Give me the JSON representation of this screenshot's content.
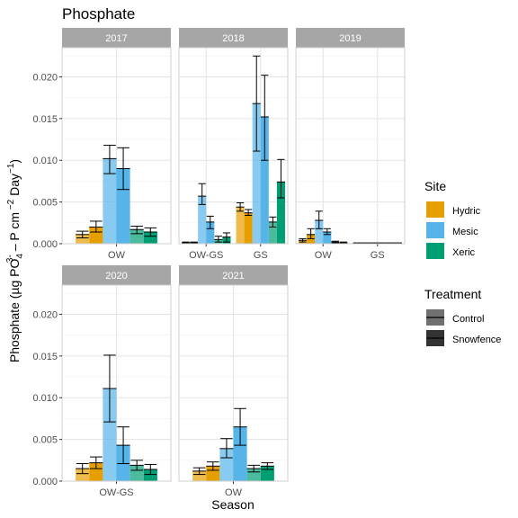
{
  "chart_data": {
    "type": "bar",
    "title": "Phosphate",
    "xlabel": "Season",
    "ylabel": {
      "main": "Phosphate (µg PO",
      "sub1": "4",
      "sup1": "3-",
      "mid": " – P cm",
      "sup2": " −2",
      "tail": " Day",
      "sup3": "−1",
      "close": ")"
    },
    "ylim": [
      0,
      0.0235
    ],
    "yticks": [
      0.0,
      0.005,
      0.01,
      0.015,
      0.02
    ],
    "ytick_labels": [
      "0.000",
      "0.005",
      "0.010",
      "0.015",
      "0.020"
    ],
    "grid": true,
    "legend_position": "right",
    "legend_site": {
      "title": "Site",
      "items": [
        {
          "label": "Hydric",
          "color": "#E69F00"
        },
        {
          "label": "Mesic",
          "color": "#56B4E9"
        },
        {
          "label": "Xeric",
          "color": "#009E73"
        }
      ]
    },
    "legend_treatment": {
      "title": "Treatment",
      "items": [
        {
          "label": "Control",
          "alpha": 0.7
        },
        {
          "label": "Snowfence",
          "alpha": 1.0
        }
      ]
    },
    "bar_order": [
      {
        "site": "Hydric",
        "treatment": "Control"
      },
      {
        "site": "Hydric",
        "treatment": "Snowfence"
      },
      {
        "site": "Mesic",
        "treatment": "Control"
      },
      {
        "site": "Mesic",
        "treatment": "Snowfence"
      },
      {
        "site": "Xeric",
        "treatment": "Control"
      },
      {
        "site": "Xeric",
        "treatment": "Snowfence"
      }
    ],
    "panels": [
      {
        "year": "2017",
        "categories": [
          "OW"
        ],
        "values": [
          [
            0.0011,
            0.002,
            0.0102,
            0.009,
            0.0017,
            0.0014
          ]
        ],
        "errors": [
          [
            [
              0.0007,
              0.0015
            ],
            [
              0.0014,
              0.0027
            ],
            [
              0.0084,
              0.0118
            ],
            [
              0.0065,
              0.0115
            ],
            [
              0.0012,
              0.0021
            ],
            [
              0.0009,
              0.0019
            ]
          ]
        ]
      },
      {
        "year": "2018",
        "categories": [
          "OW-GS",
          "GS"
        ],
        "values": [
          [
            0.0001,
            0.0001,
            0.0057,
            0.0026,
            0.0005,
            0.0008
          ],
          [
            0.0044,
            0.0037,
            0.0168,
            0.0152,
            0.0026,
            0.0074
          ]
        ],
        "errors": [
          [
            [
              0.0001,
              0.0002
            ],
            [
              0.0001,
              0.0002
            ],
            [
              0.0047,
              0.0072
            ],
            [
              0.0018,
              0.0033
            ],
            [
              0.0002,
              0.0009
            ],
            [
              0.0002,
              0.0013
            ]
          ],
          [
            [
              0.0039,
              0.0049
            ],
            [
              0.0034,
              0.0041
            ],
            [
              0.0111,
              0.0225
            ],
            [
              0.01,
              0.0202
            ],
            [
              0.002,
              0.0032
            ],
            [
              0.0055,
              0.0101
            ]
          ]
        ]
      },
      {
        "year": "2019",
        "categories": [
          "OW",
          "GS"
        ],
        "values": [
          [
            0.0004,
            0.0011,
            0.0028,
            0.0014,
            0.0002,
            0.0001
          ],
          [
            0.0001,
            0.0001,
            0.0001,
            0.0001,
            0.0001,
            0.0001
          ]
        ],
        "errors": [
          [
            [
              0.0002,
              0.0006
            ],
            [
              0.0006,
              0.0018
            ],
            [
              0.0018,
              0.0039
            ],
            [
              0.0011,
              0.0018
            ],
            [
              0.0001,
              0.0003
            ],
            [
              0.0,
              0.0002
            ]
          ],
          [
            null,
            null,
            null,
            null,
            null,
            null
          ]
        ]
      },
      {
        "year": "2020",
        "categories": [
          "OW-GS"
        ],
        "values": [
          [
            0.0015,
            0.0022,
            0.0111,
            0.0043,
            0.0019,
            0.0014
          ]
        ],
        "errors": [
          [
            [
              0.0009,
              0.0021
            ],
            [
              0.0015,
              0.0029
            ],
            [
              0.0071,
              0.0151
            ],
            [
              0.0021,
              0.0065
            ],
            [
              0.0013,
              0.0025
            ],
            [
              0.0008,
              0.002
            ]
          ]
        ]
      },
      {
        "year": "2021",
        "categories": [
          "OW"
        ],
        "values": [
          [
            0.0012,
            0.0018,
            0.0039,
            0.0065,
            0.0015,
            0.0018
          ]
        ],
        "errors": [
          [
            [
              0.0008,
              0.0016
            ],
            [
              0.0013,
              0.0023
            ],
            [
              0.0028,
              0.0051
            ],
            [
              0.0043,
              0.0087
            ],
            [
              0.0011,
              0.0019
            ],
            [
              0.0014,
              0.0022
            ]
          ]
        ]
      }
    ]
  }
}
